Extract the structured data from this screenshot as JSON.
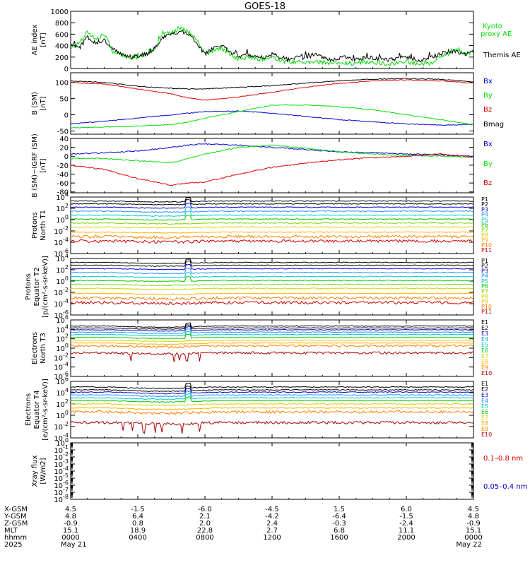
{
  "title": "GOES-18",
  "colors": {
    "black": "#000000",
    "green": "#00dd00",
    "blue": "#0000cc",
    "red": "#dd0000",
    "channels": [
      "#000000",
      "#000000",
      "#0000cc",
      "#1e90ff",
      "#00c8c8",
      "#00c800",
      "#7fd200",
      "#d2d200",
      "#ffb000",
      "#ff7f00",
      "#cc0000"
    ],
    "electron_channels": [
      "#000000",
      "#000000",
      "#0000cc",
      "#1e90ff",
      "#00c8c8",
      "#00c800",
      "#d2d200",
      "#ffb000",
      "#ff7f00",
      "#aa0000"
    ]
  },
  "chart_data": [
    {
      "type": "line",
      "id": "ae",
      "ylabel": [
        "AE index",
        "[nT]"
      ],
      "ylim": [
        0,
        1000
      ],
      "yticks": [
        "0",
        "200",
        "400",
        "600",
        "800",
        "1000"
      ],
      "legend": [
        {
          "label": "Kyoto",
          "color": "green"
        },
        {
          "label": "proxy AE",
          "color": "green"
        },
        {
          "label": "Themis AE",
          "color": "black"
        }
      ],
      "series": [
        {
          "name": "Kyoto proxy AE",
          "color": "green",
          "x": [
            0,
            0.5,
            1,
            1.5,
            2,
            2.5,
            3,
            3.5,
            4,
            4.5,
            5,
            5.5,
            6,
            6.5,
            7,
            7.5,
            8,
            8.5,
            9,
            9.5,
            10,
            10.5,
            11,
            11.5,
            12,
            12.5,
            13,
            13.5,
            14,
            14.5,
            15,
            15.5,
            16,
            16.5,
            17,
            17.5,
            18,
            18.5,
            19,
            19.5,
            20,
            20.5,
            21,
            21.5,
            22,
            22.5,
            23,
            23.5,
            24
          ],
          "values": [
            350,
            450,
            650,
            500,
            600,
            300,
            250,
            180,
            200,
            250,
            350,
            600,
            620,
            700,
            650,
            500,
            250,
            300,
            350,
            250,
            150,
            200,
            180,
            150,
            200,
            150,
            100,
            120,
            100,
            130,
            100,
            80,
            90,
            100,
            80,
            120,
            100,
            90,
            80,
            100,
            120,
            90,
            80,
            100,
            200,
            250,
            350,
            250,
            300
          ]
        },
        {
          "name": "Themis AE",
          "color": "black",
          "x": [
            0,
            0.5,
            1,
            1.5,
            2,
            2.5,
            3,
            3.5,
            4,
            4.5,
            5,
            5.5,
            6,
            6.5,
            7,
            7.5,
            8,
            8.5,
            9,
            9.5,
            10,
            10.5,
            11,
            11.5,
            12,
            12.5,
            13,
            13.5,
            14,
            14.5,
            15,
            15.5,
            16,
            16.5,
            17,
            17.5,
            18,
            18.5,
            19,
            19.5,
            20,
            20.5,
            21,
            21.5,
            22,
            22.5,
            23,
            23.5,
            24
          ],
          "values": [
            450,
            350,
            550,
            450,
            500,
            350,
            250,
            200,
            220,
            250,
            350,
            550,
            600,
            650,
            600,
            450,
            250,
            350,
            400,
            300,
            200,
            250,
            220,
            200,
            250,
            200,
            150,
            200,
            180,
            250,
            200,
            150,
            180,
            200,
            150,
            200,
            180,
            170,
            150,
            180,
            200,
            160,
            150,
            200,
            250,
            300,
            300,
            250,
            280
          ]
        }
      ]
    },
    {
      "type": "line",
      "id": "bsm",
      "ylabel": [
        "B (SM)",
        "[nT]"
      ],
      "ylim": [
        -60,
        130
      ],
      "yticks": [
        "-50",
        "0",
        "50",
        "100"
      ],
      "legend": [
        {
          "label": "Bx",
          "color": "blue"
        },
        {
          "label": "By",
          "color": "green"
        },
        {
          "label": "Bz",
          "color": "red"
        },
        {
          "label": "Bmag",
          "color": "black"
        }
      ],
      "series": [
        {
          "name": "Bx",
          "color": "blue",
          "x": [
            0,
            2,
            4,
            6,
            7,
            8,
            10,
            12,
            14,
            16,
            18,
            20,
            22,
            24
          ],
          "values": [
            -28,
            -20,
            -10,
            0,
            5,
            10,
            12,
            5,
            -5,
            -15,
            -22,
            -28,
            -32,
            -30
          ]
        },
        {
          "name": "By",
          "color": "green",
          "x": [
            0,
            2,
            4,
            6,
            7,
            8,
            10,
            12,
            14,
            16,
            18,
            20,
            22,
            24
          ],
          "values": [
            -40,
            -38,
            -35,
            -30,
            -22,
            -10,
            10,
            30,
            30,
            25,
            15,
            0,
            -15,
            -30
          ]
        },
        {
          "name": "Bz",
          "color": "red",
          "x": [
            0,
            2,
            4,
            6,
            7,
            8,
            10,
            12,
            14,
            16,
            18,
            20,
            22,
            24
          ],
          "values": [
            100,
            95,
            80,
            65,
            52,
            45,
            55,
            70,
            85,
            97,
            105,
            108,
            105,
            98
          ]
        },
        {
          "name": "Bmag",
          "color": "black",
          "x": [
            0,
            2,
            4,
            6,
            7,
            8,
            10,
            12,
            14,
            16,
            18,
            20,
            22,
            24
          ],
          "values": [
            105,
            100,
            88,
            82,
            80,
            80,
            85,
            90,
            98,
            105,
            110,
            112,
            110,
            102
          ]
        }
      ]
    },
    {
      "type": "line",
      "id": "bdiff",
      "ylabel": [
        "B (SM)−IGRF (SM)",
        "[nT]"
      ],
      "ylim": [
        -82,
        40
      ],
      "yticks": [
        "-80",
        "-60",
        "-40",
        "-20",
        "0",
        "20",
        "40"
      ],
      "legend": [
        {
          "label": "Bx",
          "color": "blue"
        },
        {
          "label": "By",
          "color": "green"
        },
        {
          "label": "Bz",
          "color": "red"
        }
      ],
      "series": [
        {
          "name": "Bx",
          "color": "blue",
          "x": [
            0,
            2,
            4,
            6,
            7,
            8,
            10,
            12,
            14,
            16,
            18,
            20,
            22,
            24
          ],
          "values": [
            5,
            8,
            12,
            20,
            25,
            28,
            25,
            20,
            15,
            10,
            8,
            5,
            3,
            0
          ]
        },
        {
          "name": "By",
          "color": "green",
          "x": [
            0,
            2,
            4,
            6,
            7,
            8,
            10,
            12,
            14,
            16,
            18,
            20,
            22,
            24
          ],
          "values": [
            -5,
            -5,
            -10,
            -15,
            -5,
            5,
            20,
            25,
            18,
            10,
            5,
            2,
            0,
            -2
          ]
        },
        {
          "name": "Bz",
          "color": "red",
          "x": [
            0,
            2,
            4,
            6,
            7,
            8,
            10,
            12,
            14,
            16,
            18,
            20,
            22,
            24
          ],
          "values": [
            -20,
            -30,
            -50,
            -65,
            -60,
            -58,
            -40,
            -25,
            -15,
            -8,
            -3,
            0,
            5,
            -2
          ]
        }
      ]
    },
    {
      "type": "line",
      "id": "p_north",
      "log": true,
      "ylabel": [
        "Protons",
        "North T1"
      ],
      "ylim_exp": [
        -6,
        4
      ],
      "yticks_exp": [
        4,
        2,
        0,
        -2,
        -4,
        -6
      ],
      "legend": [
        "P1",
        "P2",
        "P3",
        "P4",
        "P5",
        "P6",
        "P7",
        "P8",
        "P9",
        "P10",
        "P11"
      ],
      "levels_exp": [
        3.3,
        2.8,
        2.2,
        1.5,
        0.8,
        0.1,
        -0.6,
        -1.3,
        -2.2,
        -3.0,
        -3.8
      ]
    },
    {
      "type": "line",
      "id": "p_equator",
      "log": true,
      "ylabel": [
        "Protons",
        "Equator T2",
        "[p/(cm²-s-sr-keV)]"
      ],
      "ylim_exp": [
        -6,
        4
      ],
      "yticks_exp": [
        4,
        2,
        0,
        -2,
        -4,
        -6
      ],
      "legend": [
        "P1",
        "P2",
        "P3",
        "P4",
        "P5",
        "P6",
        "P7",
        "P8",
        "P9",
        "P10",
        "P11"
      ],
      "levels_exp": [
        3.3,
        2.8,
        2.2,
        1.5,
        0.8,
        0.1,
        -0.6,
        -1.3,
        -2.2,
        -3.0,
        -3.8
      ]
    },
    {
      "type": "line",
      "id": "e_north",
      "log": true,
      "ylabel": [
        "Electrons",
        "North T3"
      ],
      "ylim_exp": [
        -6,
        6
      ],
      "yticks_exp": [
        6,
        4,
        2,
        0,
        -2,
        -4,
        -6
      ],
      "legend": [
        "E1",
        "E2",
        "E3",
        "E4",
        "E5",
        "E6",
        "E7",
        "E8",
        "E9",
        "E10"
      ],
      "levels_exp": [
        4.7,
        4.3,
        3.9,
        3.4,
        2.9,
        2.3,
        1.7,
        1.1,
        0.5,
        -1.0
      ]
    },
    {
      "type": "line",
      "id": "e_equator",
      "log": true,
      "ylabel": [
        "Electrons",
        "Equator T4",
        "[e/(cm²-s-sr-keV)]"
      ],
      "ylim_exp": [
        -4,
        6
      ],
      "yticks_exp": [
        6,
        4,
        2,
        0,
        -2,
        -4
      ],
      "legend": [
        "E1",
        "E2",
        "E3",
        "E4",
        "E5",
        "E6",
        "E7",
        "E8",
        "E9",
        "E10"
      ],
      "levels_exp": [
        5.0,
        4.5,
        4.1,
        3.6,
        3.1,
        2.6,
        2.0,
        1.3,
        0.6,
        -1.3
      ]
    },
    {
      "type": "line",
      "id": "xray",
      "log": true,
      "ylabel": [
        "Xray flux",
        "[W/m2]"
      ],
      "ylim_exp": [
        -8,
        0
      ],
      "yticks_exp": [
        0,
        -1,
        -2,
        -3,
        -4,
        -5,
        -6,
        -7,
        -8
      ],
      "legend": [
        {
          "label": "0.1–0.8 nm",
          "color": "red"
        },
        {
          "label": "0.05–0.4 nm",
          "color": "blue"
        }
      ]
    }
  ],
  "xaxis": {
    "row_labels": [
      "X-GSM",
      "Y-GSM",
      "Z-GSM",
      "MLT",
      "hhmm",
      "2025"
    ],
    "columns": [
      [
        "4.5",
        "4.8",
        "-0.9",
        "15.1",
        "0000",
        "May 21"
      ],
      [
        "-1.5",
        "6.4",
        "0.8",
        "18.9",
        "0400",
        ""
      ],
      [
        "-6.0",
        "2.1",
        "2.0",
        "22.8",
        "0800",
        ""
      ],
      [
        "-4.5",
        "-4.2",
        "2.4",
        "2.7",
        "1200",
        ""
      ],
      [
        "1.5",
        "-6.4",
        "-0.3",
        "6.8",
        "1600",
        ""
      ],
      [
        "6.0",
        "-1.5",
        "-2.4",
        "11.1",
        "2000",
        ""
      ],
      [
        "4.5",
        "4.8",
        "-0.9",
        "15.1",
        "0000",
        "May 22"
      ]
    ]
  }
}
